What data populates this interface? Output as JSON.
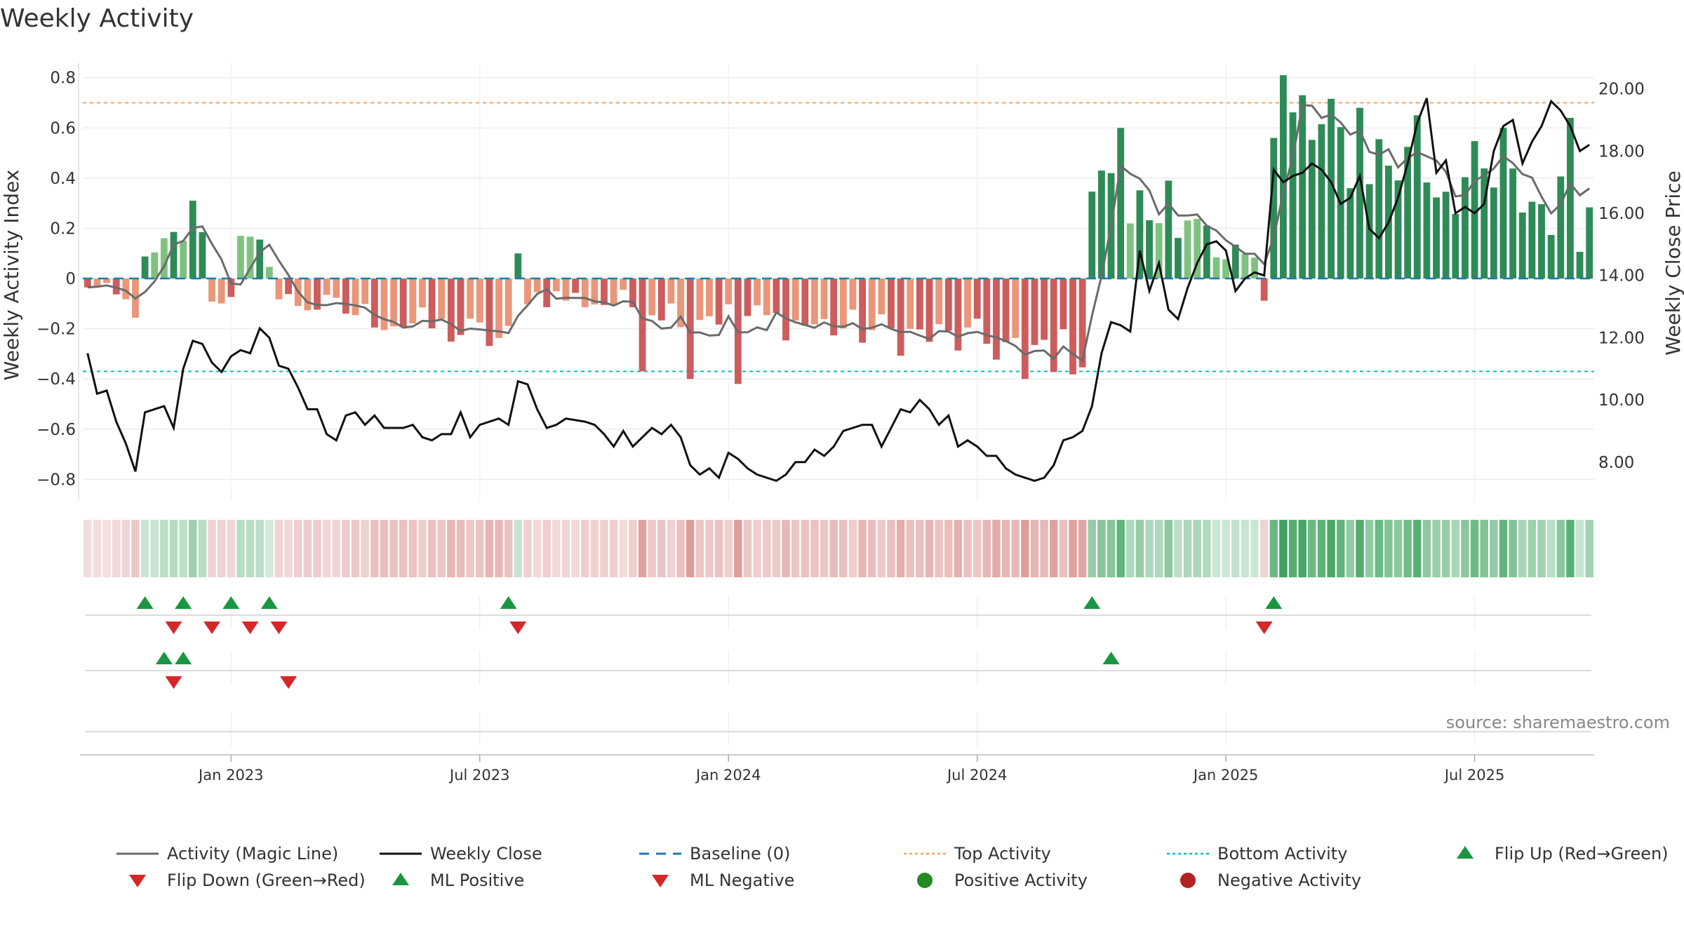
{
  "chart_data": {
    "type": "bar",
    "title": "Weekly Activity",
    "source_note": "source: sharemaestro.com",
    "y_left": {
      "label": "Weekly Activity Index",
      "range": [
        -0.88,
        0.83
      ],
      "ticks": [
        0.8,
        0.6,
        0.4,
        0.2,
        0,
        -0.2,
        -0.4,
        -0.6,
        -0.8
      ],
      "tick_labels": [
        "0.8",
        "0.6",
        "0.4",
        "0.2",
        "0",
        "−0.2",
        "−0.4",
        "−0.6",
        "−0.8"
      ]
    },
    "y_right": {
      "label": "Weekly Close Price",
      "range": [
        6.8,
        20.6
      ],
      "ticks": [
        20,
        18,
        16,
        14,
        12,
        10,
        8
      ],
      "tick_labels": [
        "20.00",
        "18.00",
        "16.00",
        "14.00",
        "12.00",
        "10.00",
        "8.00"
      ]
    },
    "x_axis": {
      "start_week": 0,
      "end_week": 157,
      "ticks": [
        {
          "week": 15,
          "label": "Jan 2023"
        },
        {
          "week": 41,
          "label": "Jul 2023"
        },
        {
          "week": 67,
          "label": "Jan 2024"
        },
        {
          "week": 93,
          "label": "Jul 2024"
        },
        {
          "week": 119,
          "label": "Jan 2025"
        },
        {
          "week": 145,
          "label": "Jul 2025"
        }
      ]
    },
    "reference_lines": {
      "top_activity": 0.7,
      "bottom_activity": -0.37,
      "baseline": 0
    },
    "segments": [
      {
        "start": 0,
        "end": 5,
        "from": -0.02,
        "to": -0.12,
        "noise": 0.05
      },
      {
        "start": 6,
        "end": 12,
        "from": 0.04,
        "to": 0.25,
        "noise": 0.09
      },
      {
        "start": 13,
        "end": 15,
        "from": -0.1,
        "to": -0.05,
        "noise": 0.05
      },
      {
        "start": 16,
        "end": 19,
        "from": 0.12,
        "to": 0.1,
        "noise": 0.08
      },
      {
        "start": 20,
        "end": 44,
        "from": -0.08,
        "to": -0.25,
        "noise": 0.06
      },
      {
        "start": 45,
        "end": 45,
        "from": 0.1,
        "to": 0.1,
        "noise": 0
      },
      {
        "start": 46,
        "end": 104,
        "from": -0.06,
        "to": -0.3,
        "noise": 0.07
      },
      {
        "start": 105,
        "end": 117,
        "from": 0.36,
        "to": 0.15,
        "noise": 0.12
      },
      {
        "start": 118,
        "end": 122,
        "from": 0.04,
        "to": 0.15,
        "noise": 0.06
      },
      {
        "start": 123,
        "end": 123,
        "from": -0.08,
        "to": -0.08,
        "noise": 0
      },
      {
        "start": 124,
        "end": 157,
        "from": 0.6,
        "to": 0.25,
        "noise": 0.17
      }
    ],
    "close_keypoints": [
      [
        0,
        11.5
      ],
      [
        1,
        10.2
      ],
      [
        2,
        10.3
      ],
      [
        3,
        9.3
      ],
      [
        4,
        8.6
      ],
      [
        5,
        7.7
      ],
      [
        6,
        9.6
      ],
      [
        8,
        9.8
      ],
      [
        9,
        9.1
      ],
      [
        10,
        11.0
      ],
      [
        11,
        11.9
      ],
      [
        12,
        11.8
      ],
      [
        13,
        11.2
      ],
      [
        14,
        10.9
      ],
      [
        15,
        11.4
      ],
      [
        16,
        11.6
      ],
      [
        17,
        11.5
      ],
      [
        18,
        12.3
      ],
      [
        19,
        12.0
      ],
      [
        20,
        11.1
      ],
      [
        21,
        11.0
      ],
      [
        22,
        10.4
      ],
      [
        23,
        9.7
      ],
      [
        24,
        9.7
      ],
      [
        25,
        8.9
      ],
      [
        26,
        8.7
      ],
      [
        27,
        9.5
      ],
      [
        28,
        9.6
      ],
      [
        29,
        9.2
      ],
      [
        30,
        9.5
      ],
      [
        31,
        9.1
      ],
      [
        33,
        9.1
      ],
      [
        34,
        9.2
      ],
      [
        35,
        8.8
      ],
      [
        36,
        8.7
      ],
      [
        37,
        8.9
      ],
      [
        38,
        8.9
      ],
      [
        39,
        9.6
      ],
      [
        40,
        8.8
      ],
      [
        41,
        9.2
      ],
      [
        43,
        9.4
      ],
      [
        44,
        9.2
      ],
      [
        45,
        10.6
      ],
      [
        46,
        10.5
      ],
      [
        47,
        9.7
      ],
      [
        48,
        9.1
      ],
      [
        49,
        9.2
      ],
      [
        50,
        9.4
      ],
      [
        52,
        9.3
      ],
      [
        53,
        9.2
      ],
      [
        54,
        8.9
      ],
      [
        55,
        8.5
      ],
      [
        56,
        9.0
      ],
      [
        57,
        8.5
      ],
      [
        58,
        8.8
      ],
      [
        59,
        9.1
      ],
      [
        60,
        8.9
      ],
      [
        61,
        9.2
      ],
      [
        62,
        8.8
      ],
      [
        63,
        7.9
      ],
      [
        64,
        7.6
      ],
      [
        65,
        7.8
      ],
      [
        66,
        7.5
      ],
      [
        67,
        8.3
      ],
      [
        68,
        8.1
      ],
      [
        69,
        7.8
      ],
      [
        70,
        7.6
      ],
      [
        71,
        7.5
      ],
      [
        72,
        7.4
      ],
      [
        73,
        7.6
      ],
      [
        74,
        8.0
      ],
      [
        75,
        8.0
      ],
      [
        76,
        8.4
      ],
      [
        77,
        8.2
      ],
      [
        78,
        8.5
      ],
      [
        79,
        9.0
      ],
      [
        80,
        9.1
      ],
      [
        81,
        9.2
      ],
      [
        82,
        9.2
      ],
      [
        83,
        8.5
      ],
      [
        84,
        9.1
      ],
      [
        85,
        9.7
      ],
      [
        86,
        9.6
      ],
      [
        87,
        10.0
      ],
      [
        88,
        9.7
      ],
      [
        89,
        9.2
      ],
      [
        90,
        9.5
      ],
      [
        91,
        8.5
      ],
      [
        92,
        8.7
      ],
      [
        93,
        8.5
      ],
      [
        94,
        8.2
      ],
      [
        95,
        8.2
      ],
      [
        96,
        7.8
      ],
      [
        97,
        7.6
      ],
      [
        98,
        7.5
      ],
      [
        99,
        7.4
      ],
      [
        100,
        7.5
      ],
      [
        101,
        7.9
      ],
      [
        102,
        8.7
      ],
      [
        103,
        8.8
      ],
      [
        104,
        9.0
      ],
      [
        105,
        9.8
      ],
      [
        106,
        11.5
      ],
      [
        107,
        12.5
      ],
      [
        108,
        12.4
      ],
      [
        109,
        12.2
      ],
      [
        110,
        14.8
      ],
      [
        111,
        13.5
      ],
      [
        112,
        14.4
      ],
      [
        113,
        12.9
      ],
      [
        114,
        12.6
      ],
      [
        115,
        13.6
      ],
      [
        116,
        14.4
      ],
      [
        117,
        15.0
      ],
      [
        118,
        15.1
      ],
      [
        119,
        14.8
      ],
      [
        120,
        13.5
      ],
      [
        121,
        13.9
      ],
      [
        122,
        14.1
      ],
      [
        123,
        14.0
      ],
      [
        124,
        17.4
      ],
      [
        125,
        17.0
      ],
      [
        126,
        17.2
      ],
      [
        127,
        17.3
      ],
      [
        128,
        17.6
      ],
      [
        129,
        17.4
      ],
      [
        130,
        17.0
      ],
      [
        131,
        16.3
      ],
      [
        132,
        16.5
      ],
      [
        133,
        17.2
      ],
      [
        134,
        15.5
      ],
      [
        135,
        15.2
      ],
      [
        136,
        15.7
      ],
      [
        137,
        16.5
      ],
      [
        138,
        17.6
      ],
      [
        139,
        18.9
      ],
      [
        140,
        19.7
      ],
      [
        141,
        17.3
      ],
      [
        142,
        17.7
      ],
      [
        143,
        16.0
      ],
      [
        144,
        16.2
      ],
      [
        145,
        16.0
      ],
      [
        146,
        16.3
      ],
      [
        147,
        18.0
      ],
      [
        148,
        18.8
      ],
      [
        149,
        19.0
      ],
      [
        150,
        17.6
      ],
      [
        151,
        18.3
      ],
      [
        152,
        18.8
      ],
      [
        153,
        19.6
      ],
      [
        154,
        19.3
      ],
      [
        155,
        18.8
      ],
      [
        156,
        18.0
      ],
      [
        157,
        18.2
      ]
    ],
    "sub_panels": [
      {
        "name": "flip-markers",
        "up_weeks": [
          6,
          10,
          15,
          19,
          44,
          105,
          124
        ],
        "down_weeks": [
          9,
          13,
          17,
          20,
          45,
          123
        ]
      },
      {
        "name": "ml-markers",
        "up_weeks": [
          8,
          10,
          107
        ],
        "down_weeks": [
          9,
          21
        ]
      },
      {
        "name": "activity-dots",
        "up_weeks": [],
        "down_weeks": []
      }
    ],
    "colors": {
      "strong_green": "#2e8b57",
      "light_green": "#7fc27f",
      "strong_red": "#cd5c5c",
      "light_red": "#e9967a",
      "magic_line": "#6b6b6b",
      "close_line": "#111111",
      "baseline": "#1f77b4",
      "top_line": "#f4a460",
      "bottom_line": "#00bfbf",
      "marker_up": "#1a9641",
      "marker_down": "#d62728",
      "dot_pos": "#228b22",
      "dot_neg": "#b22222"
    },
    "legend": [
      {
        "label": "Activity (Magic Line)",
        "kind": "line",
        "color": "#6b6b6b"
      },
      {
        "label": "Weekly Close",
        "kind": "line",
        "color": "#111111"
      },
      {
        "label": "Baseline (0)",
        "kind": "dash",
        "color": "#1f77b4"
      },
      {
        "label": "Top Activity",
        "kind": "dot-line",
        "color": "#f4a460"
      },
      {
        "label": "Bottom Activity",
        "kind": "dot-line",
        "color": "#00bfbf"
      },
      {
        "label": "Flip Up (Red→Green)",
        "kind": "tri-up",
        "color": "#1a9641"
      },
      {
        "label": "Flip Down (Green→Red)",
        "kind": "tri-down",
        "color": "#d62728"
      },
      {
        "label": "ML Positive",
        "kind": "tri-up",
        "color": "#1a9641"
      },
      {
        "label": "ML Negative",
        "kind": "tri-down",
        "color": "#d62728"
      },
      {
        "label": "Positive Activity",
        "kind": "circle",
        "color": "#228b22"
      },
      {
        "label": "Negative Activity",
        "kind": "circle",
        "color": "#b22222"
      }
    ]
  }
}
